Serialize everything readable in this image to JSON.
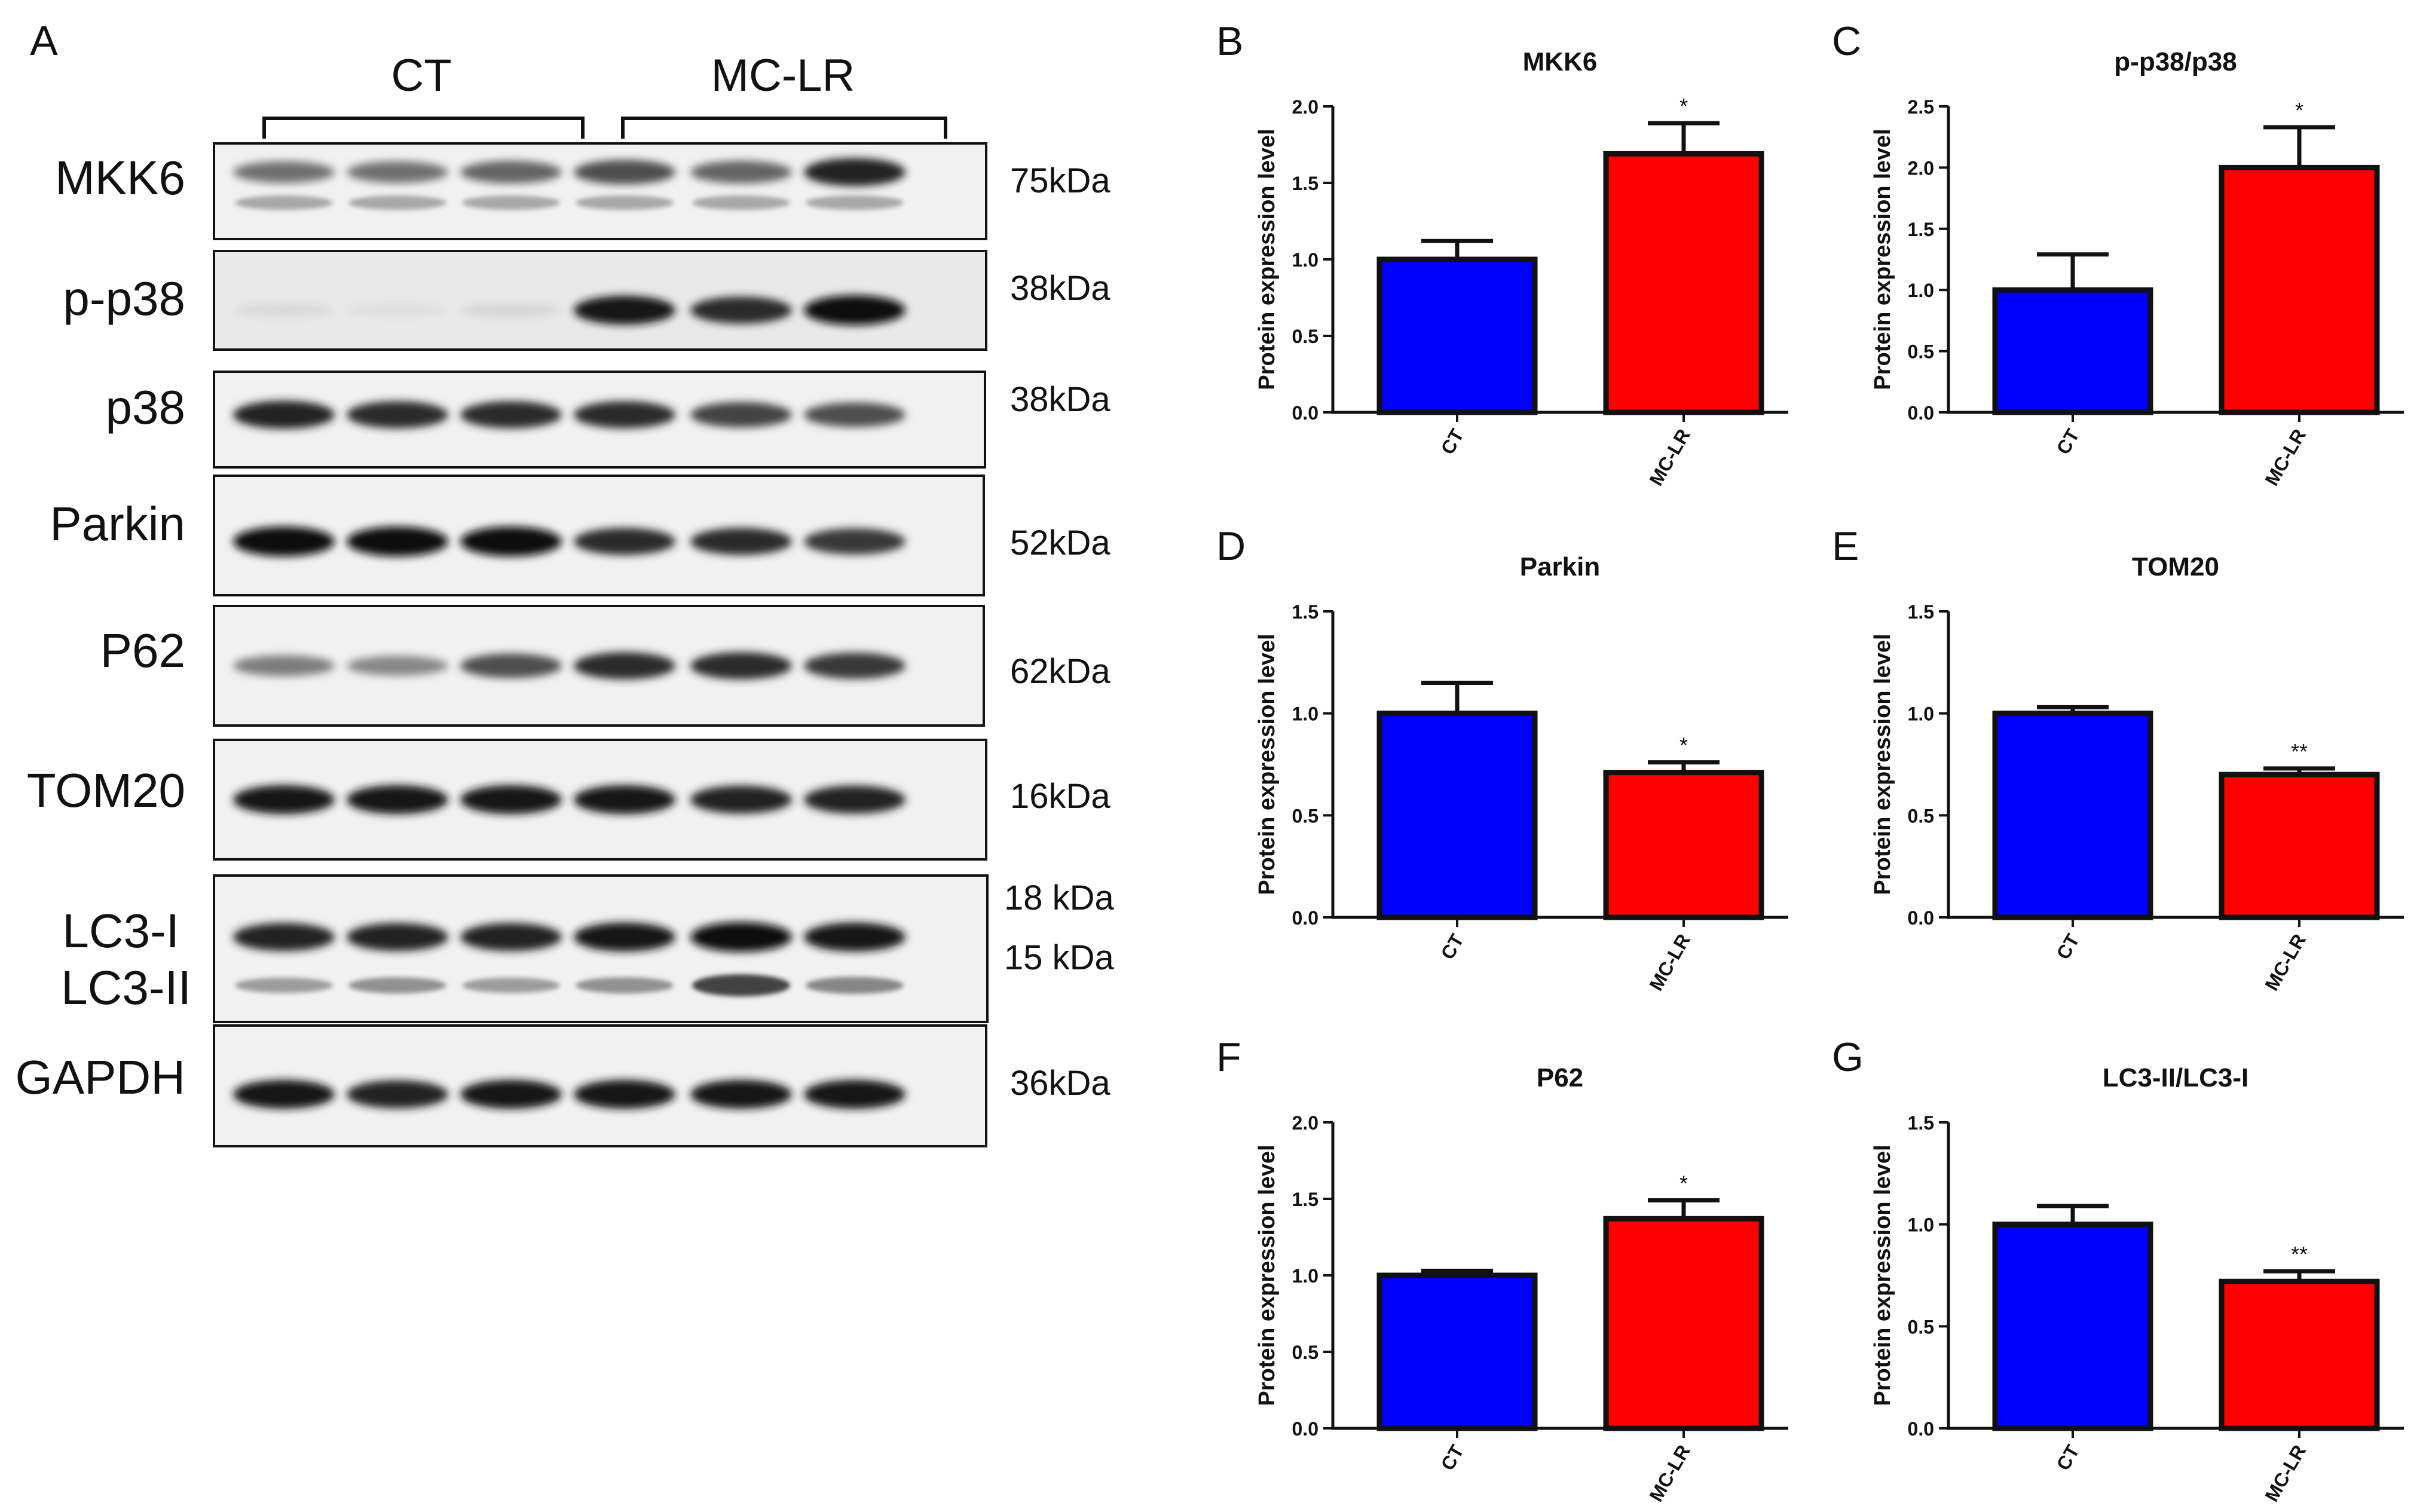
{
  "panel_a": {
    "letter": "A",
    "groups": [
      "CT",
      "MC-LR"
    ],
    "rows": [
      {
        "protein": "MKK6",
        "size": "75kDa",
        "band_intensity": [
          0.55,
          0.55,
          0.6,
          0.7,
          0.6,
          0.9
        ],
        "second_band_intensity": [
          0.3,
          0.3,
          0.3,
          0.3,
          0.3,
          0.3
        ]
      },
      {
        "protein": "p-p38",
        "size": "38kDa",
        "band_intensity": [
          0.08,
          0.06,
          0.1,
          0.95,
          0.85,
          1.0
        ]
      },
      {
        "protein": "p38",
        "size": "38kDa",
        "band_intensity": [
          0.9,
          0.85,
          0.85,
          0.85,
          0.75,
          0.7
        ]
      },
      {
        "protein": "Parkin",
        "size": "52kDa",
        "band_intensity": [
          1.0,
          1.0,
          1.0,
          0.85,
          0.85,
          0.8
        ]
      },
      {
        "protein": "P62",
        "size": "62kDa",
        "band_intensity": [
          0.5,
          0.45,
          0.7,
          0.85,
          0.85,
          0.8
        ]
      },
      {
        "protein": "TOM20",
        "size": "16kDa",
        "band_intensity": [
          0.95,
          0.95,
          0.95,
          0.95,
          0.9,
          0.9
        ]
      },
      {
        "protein": "LC3-I",
        "protein2": "LC3-II",
        "size": "18 kDa",
        "size2": "15 kDa",
        "band_intensity": [
          0.9,
          0.9,
          0.9,
          0.95,
          1.0,
          0.95
        ],
        "second_band_intensity": [
          0.35,
          0.4,
          0.35,
          0.4,
          0.75,
          0.45
        ]
      },
      {
        "protein": "GAPDH",
        "size": "36kDa",
        "band_intensity": [
          0.95,
          0.9,
          0.95,
          0.95,
          0.95,
          0.95
        ]
      }
    ]
  },
  "chart_data": [
    {
      "letter": "B",
      "type": "bar",
      "title": "MKK6",
      "ylabel": "Protein expression level",
      "categories": [
        "CT",
        "MC-LR"
      ],
      "values": [
        1.0,
        1.69
      ],
      "errors": [
        0.12,
        0.2
      ],
      "significance": [
        "",
        "*"
      ],
      "ylim": [
        0,
        2.0
      ],
      "yticks": [
        "0.0",
        "0.5",
        "1.0",
        "1.5",
        "2.0"
      ],
      "colors": [
        "#0000ff",
        "#ff0000"
      ]
    },
    {
      "letter": "C",
      "type": "bar",
      "title": "p-p38/p38",
      "ylabel": "Protein expression level",
      "categories": [
        "CT",
        "MC-LR"
      ],
      "values": [
        1.0,
        2.0
      ],
      "errors": [
        0.29,
        0.33
      ],
      "significance": [
        "",
        "*"
      ],
      "ylim": [
        0,
        2.5
      ],
      "yticks": [
        "0.0",
        "0.5",
        "1.0",
        "1.5",
        "2.0",
        "2.5"
      ],
      "colors": [
        "#0000ff",
        "#ff0000"
      ]
    },
    {
      "letter": "D",
      "type": "bar",
      "title": "Parkin",
      "ylabel": "Protein expression level",
      "categories": [
        "CT",
        "MC-LR"
      ],
      "values": [
        1.0,
        0.71
      ],
      "errors": [
        0.15,
        0.05
      ],
      "significance": [
        "",
        "*"
      ],
      "ylim": [
        0,
        1.5
      ],
      "yticks": [
        "0.0",
        "0.5",
        "1.0",
        "1.5"
      ],
      "colors": [
        "#0000ff",
        "#ff0000"
      ]
    },
    {
      "letter": "E",
      "type": "bar",
      "title": "TOM20",
      "ylabel": "Protein expression level",
      "categories": [
        "CT",
        "MC-LR"
      ],
      "values": [
        1.0,
        0.7
      ],
      "errors": [
        0.03,
        0.03
      ],
      "significance": [
        "",
        "**"
      ],
      "ylim": [
        0,
        1.5
      ],
      "yticks": [
        "0.0",
        "0.5",
        "1.0",
        "1.5"
      ],
      "colors": [
        "#0000ff",
        "#ff0000"
      ]
    },
    {
      "letter": "F",
      "type": "bar",
      "title": "P62",
      "ylabel": "Protein expression level",
      "categories": [
        "CT",
        "MC-LR"
      ],
      "values": [
        1.0,
        1.37
      ],
      "errors": [
        0.03,
        0.12
      ],
      "significance": [
        "",
        "*"
      ],
      "ylim": [
        0,
        2.0
      ],
      "yticks": [
        "0.0",
        "0.5",
        "1.0",
        "1.5",
        "2.0"
      ],
      "colors": [
        "#0000ff",
        "#ff0000"
      ]
    },
    {
      "letter": "G",
      "type": "bar",
      "title": "LC3-II/LC3-I",
      "ylabel": "Protein expression level",
      "categories": [
        "CT",
        "MC-LR"
      ],
      "values": [
        1.0,
        0.72
      ],
      "errors": [
        0.09,
        0.05
      ],
      "significance": [
        "",
        "**"
      ],
      "ylim": [
        0,
        1.5
      ],
      "yticks": [
        "0.0",
        "0.5",
        "1.0",
        "1.5"
      ],
      "colors": [
        "#0000ff",
        "#ff0000"
      ]
    }
  ]
}
